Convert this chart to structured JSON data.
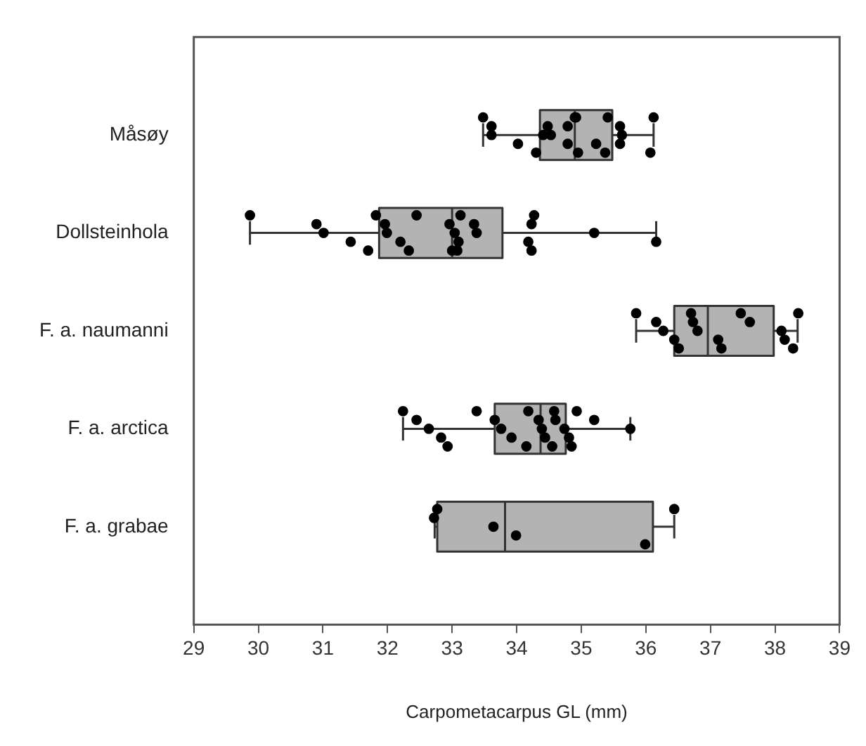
{
  "chart_data": {
    "type": "box",
    "orientation": "horizontal",
    "xlabel": "Carpometacarpus GL (mm)",
    "categories": [
      "Måsøy",
      "Dollsteinhola",
      "F. a. naumanni",
      "F. a. arctica",
      "F. a. grabae"
    ],
    "xlim": [
      29,
      39
    ],
    "xticks": [
      29,
      30,
      31,
      32,
      33,
      34,
      35,
      36,
      37,
      38,
      39
    ],
    "grid": false,
    "legend": false,
    "series": [
      {
        "color": "#b3b3b3",
        "boxes": [
          {
            "low": 33.48,
            "q1": 34.36,
            "median": 34.9,
            "q3": 35.48,
            "high": 36.12
          },
          {
            "low": 29.87,
            "q1": 31.87,
            "median": 33.0,
            "q3": 33.78,
            "high": 36.16
          },
          {
            "low": 35.85,
            "q1": 36.44,
            "median": 36.96,
            "q3": 37.98,
            "high": 38.35
          },
          {
            "low": 32.24,
            "q1": 33.66,
            "median": 34.37,
            "q3": 34.76,
            "high": 35.76
          },
          {
            "low": 32.73,
            "q1": 32.77,
            "median": 33.82,
            "q3": 36.11,
            "high": 36.44
          }
        ]
      },
      {
        "type": "scatter",
        "color": "#000000",
        "marker": "circle",
        "x": [
          "Måsøy",
          "Måsøy",
          "Måsøy",
          "Måsøy",
          "Måsøy",
          "Måsøy",
          "Måsøy",
          "Måsøy",
          "Måsøy",
          "Måsøy",
          "Måsøy",
          "Måsøy",
          "Måsøy",
          "Måsøy",
          "Måsøy",
          "Måsøy",
          "Måsøy",
          "Måsøy",
          "Måsøy",
          "Måsøy",
          "Måsøy",
          "Dollsteinhola",
          "Dollsteinhola",
          "Dollsteinhola",
          "Dollsteinhola",
          "Dollsteinhola",
          "Dollsteinhola",
          "Dollsteinhola",
          "Dollsteinhola",
          "Dollsteinhola",
          "Dollsteinhola",
          "Dollsteinhola",
          "Dollsteinhola",
          "Dollsteinhola",
          "Dollsteinhola",
          "Dollsteinhola",
          "Dollsteinhola",
          "Dollsteinhola",
          "Dollsteinhola",
          "Dollsteinhola",
          "Dollsteinhola",
          "Dollsteinhola",
          "Dollsteinhola",
          "Dollsteinhola",
          "Dollsteinhola",
          "Dollsteinhola",
          "F. a. naumanni",
          "F. a. naumanni",
          "F. a. naumanni",
          "F. a. naumanni",
          "F. a. naumanni",
          "F. a. naumanni",
          "F. a. naumanni",
          "F. a. naumanni",
          "F. a. naumanni",
          "F. a. naumanni",
          "F. a. naumanni",
          "F. a. naumanni",
          "F. a. naumanni",
          "F. a. naumanni",
          "F. a. naumanni",
          "F. a. naumanni",
          "F. a. arctica",
          "F. a. arctica",
          "F. a. arctica",
          "F. a. arctica",
          "F. a. arctica",
          "F. a. arctica",
          "F. a. arctica",
          "F. a. arctica",
          "F. a. arctica",
          "F. a. arctica",
          "F. a. arctica",
          "F. a. arctica",
          "F. a. arctica",
          "F. a. arctica",
          "F. a. arctica",
          "F. a. arctica",
          "F. a. arctica",
          "F. a. arctica",
          "F. a. arctica",
          "F. a. arctica",
          "F. a. arctica",
          "F. a. arctica",
          "F. a. arctica",
          "F. a. grabae",
          "F. a. grabae",
          "F. a. grabae",
          "F. a. grabae",
          "F. a. grabae",
          "F. a. grabae"
        ],
        "values": [
          33.48,
          33.61,
          33.61,
          34.02,
          34.3,
          34.9,
          34.48,
          34.41,
          34.79,
          34.95,
          34.92,
          34.79,
          34.53,
          35.23,
          35.37,
          35.41,
          35.6,
          35.63,
          35.6,
          36.07,
          36.12,
          29.87,
          30.9,
          31.01,
          31.43,
          31.7,
          31.82,
          31.96,
          31.99,
          32.2,
          32.33,
          32.45,
          32.96,
          33.04,
          33.1,
          33.08,
          33.13,
          33.34,
          33.38,
          34.18,
          34.23,
          34.27,
          34.23,
          35.2,
          36.16,
          33.0,
          35.85,
          36.16,
          36.27,
          36.44,
          36.51,
          36.7,
          36.73,
          36.8,
          37.12,
          37.17,
          37.47,
          37.61,
          38.1,
          38.15,
          38.28,
          38.36,
          32.24,
          32.45,
          32.64,
          32.83,
          32.93,
          33.38,
          33.66,
          33.76,
          33.92,
          34.15,
          34.18,
          34.34,
          34.39,
          34.44,
          34.55,
          34.58,
          34.6,
          34.74,
          34.81,
          34.85,
          34.93,
          35.2,
          35.76,
          32.77,
          32.72,
          33.64,
          33.99,
          35.99,
          36.44
        ]
      }
    ]
  }
}
